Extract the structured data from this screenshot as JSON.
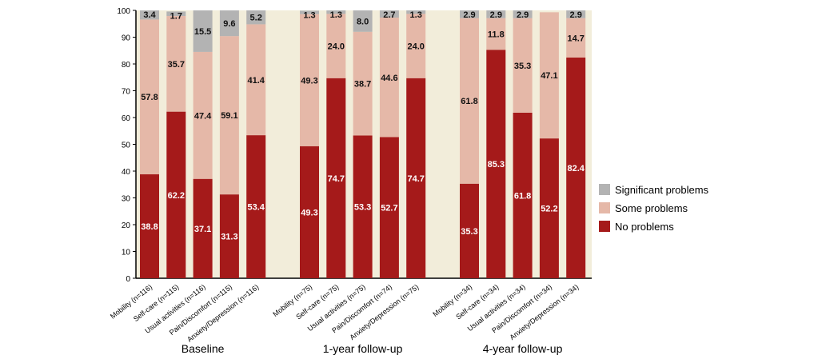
{
  "chart_data": {
    "type": "bar",
    "stacked": true,
    "title": "",
    "xlabel": "",
    "ylabel": "",
    "ylim": [
      0,
      100
    ],
    "yticks": [
      0,
      10,
      20,
      30,
      40,
      50,
      60,
      70,
      80,
      90,
      100
    ],
    "legend_position": "right",
    "groups": [
      {
        "name": "Baseline",
        "categories": [
          "Mobility (n=116)",
          "Self-care (n=115)",
          "Usual activities (n=116)",
          "Pain/Discomfort (n=115)",
          "Anxiety/Depression (n=116)"
        ]
      },
      {
        "name": "1-year follow-up",
        "categories": [
          "Mobility (n=75)",
          "Self-care (n=75)",
          "Usual activities (n=75)",
          "Pain/Discomfort (n=74)",
          "Anxiety/Depression (n=75)"
        ]
      },
      {
        "name": "4-year follow-up",
        "categories": [
          "Mobility (n=34)",
          "Self-care (n=34)",
          "Usual activities (n=34)",
          "Pain/Discomfort (n=34)",
          "Anxiety/Depression (n=34)"
        ]
      }
    ],
    "series": [
      {
        "name": "No problems",
        "color": "#A51A1A",
        "label_color": "#ffffff",
        "values": [
          [
            38.8,
            62.2,
            37.1,
            31.3,
            53.4
          ],
          [
            49.3,
            74.7,
            53.3,
            52.7,
            74.7
          ],
          [
            35.3,
            85.3,
            61.8,
            52.2,
            82.4
          ]
        ]
      },
      {
        "name": "Some problems",
        "color": "#E5B8A8",
        "label_color": "#111111",
        "values": [
          [
            57.8,
            35.7,
            47.4,
            59.1,
            41.4
          ],
          [
            49.3,
            24.0,
            38.7,
            44.6,
            24.0
          ],
          [
            61.8,
            11.8,
            35.3,
            47.1,
            14.7
          ]
        ]
      },
      {
        "name": "Significant problems",
        "color": "#B3B3B3",
        "label_color": "#111111",
        "values": [
          [
            3.4,
            1.7,
            15.5,
            9.6,
            5.2
          ],
          [
            1.3,
            1.3,
            8.0,
            2.7,
            1.3
          ],
          [
            2.9,
            2.9,
            2.9,
            null,
            2.9
          ]
        ]
      }
    ],
    "legend_order": [
      "Significant problems",
      "Some problems",
      "No problems"
    ],
    "background": "#F2EDDA"
  }
}
